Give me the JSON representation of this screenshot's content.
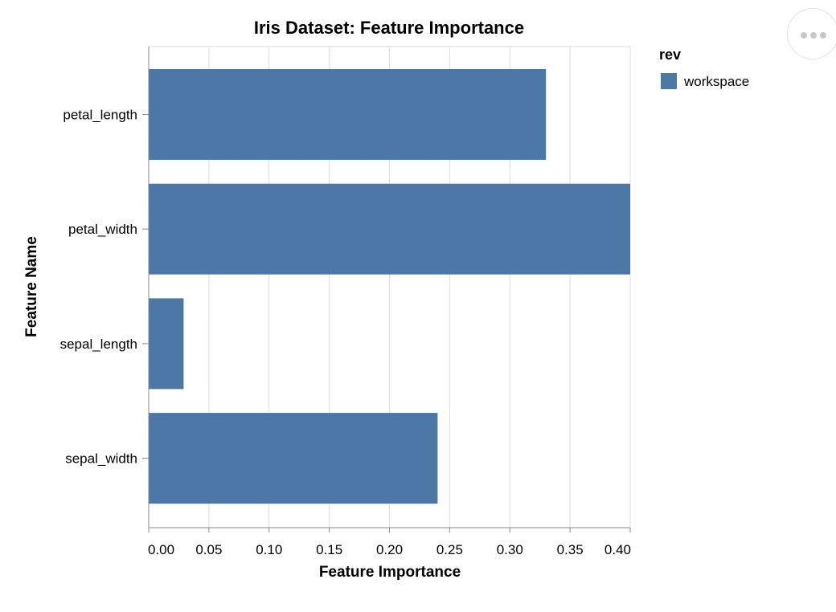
{
  "chart_data": {
    "type": "bar",
    "orientation": "horizontal",
    "title": "Iris Dataset: Feature Importance",
    "xlabel": "Feature Importance",
    "ylabel": "Feature Name",
    "categories": [
      "petal_length",
      "petal_width",
      "sepal_length",
      "sepal_width"
    ],
    "series": [
      {
        "name": "workspace",
        "values": [
          0.33,
          0.4,
          0.029,
          0.24
        ]
      }
    ],
    "xlim": [
      0,
      0.4
    ],
    "xticks": [
      "0.00",
      "0.05",
      "0.10",
      "0.15",
      "0.20",
      "0.25",
      "0.30",
      "0.35",
      "0.40"
    ],
    "grid": true,
    "legend": {
      "title": "rev",
      "entries": [
        "workspace"
      ],
      "placement": "right"
    },
    "colors": {
      "bar": "#4c78a8",
      "grid": "#dddddd",
      "axis": "#888888"
    }
  }
}
